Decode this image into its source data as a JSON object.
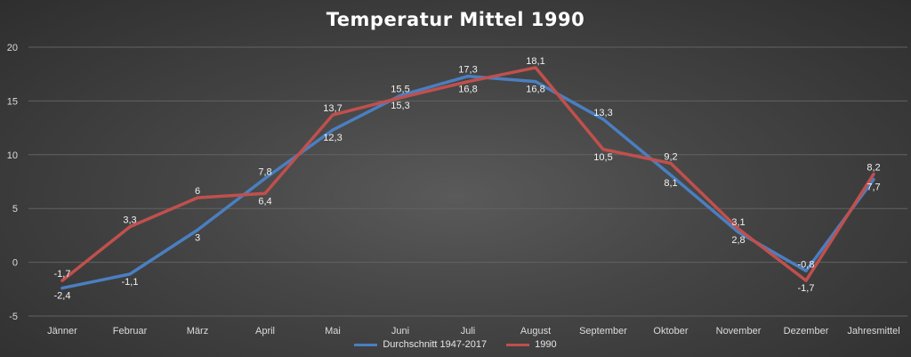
{
  "chart_data": {
    "type": "line",
    "title": "Temperatur Mittel 1990",
    "categories": [
      "Jänner",
      "Februar",
      "März",
      "April",
      "Mai",
      "Juni",
      "Juli",
      "August",
      "September",
      "Oktober",
      "November",
      "Dezember",
      "Jahresmittel"
    ],
    "series": [
      {
        "name": "Durchschnitt 1947-2017",
        "color": "#4a7fc1",
        "values": [
          -2.4,
          -1.1,
          3,
          7.8,
          12.3,
          15.5,
          17.3,
          16.8,
          13.3,
          8.1,
          2.8,
          -0.8,
          7.7
        ],
        "labels": [
          "-2,4",
          "-1,1",
          "3",
          "7,8",
          "12,3",
          "15,5",
          "17,3",
          "16,8",
          "13,3",
          "8,1",
          "2,8",
          "-0,8",
          "7,7"
        ]
      },
      {
        "name": "1990",
        "color": "#c0504d",
        "values": [
          -1.7,
          3.3,
          6,
          6.4,
          13.7,
          15.3,
          16.8,
          18.1,
          10.5,
          9.2,
          3.1,
          -1.7,
          8.2
        ],
        "labels": [
          "-1,7",
          "3,3",
          "6",
          "6,4",
          "13,7",
          "15,3",
          "16,8",
          "18,1",
          "10,5",
          "9,2",
          "3,1",
          "-1,7",
          "8,2"
        ]
      }
    ],
    "yticks": [
      "-5",
      "0",
      "5",
      "10",
      "15",
      "20"
    ],
    "ylim": [
      -5,
      20
    ],
    "grid": true,
    "legend_position": "bottom"
  }
}
